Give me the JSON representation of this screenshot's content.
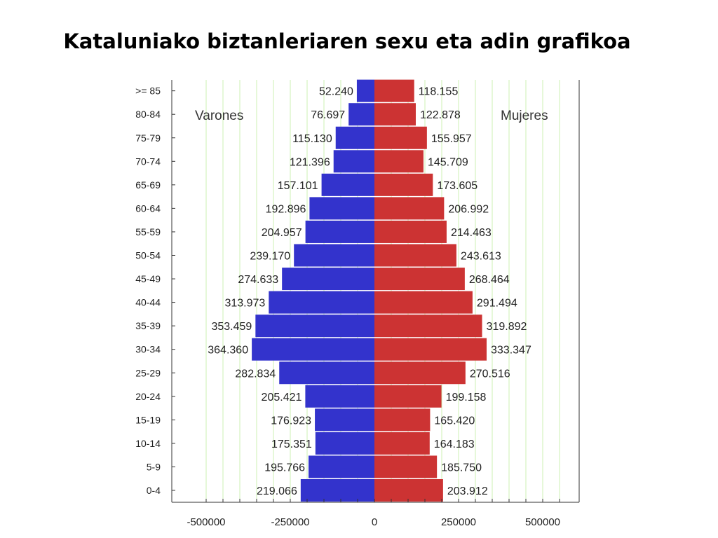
{
  "slide": {
    "title": "Kataluniako biztanleriaren sexu eta adin grafikoa"
  },
  "colors": {
    "male": "#3333cc",
    "female": "#cc3333",
    "grid": "#ccf0b3",
    "axis": "#333333"
  },
  "chart_data": {
    "type": "bar",
    "orientation": "horizontal",
    "subtype": "population-pyramid",
    "categories": [
      "0-4",
      "5-9",
      "10-14",
      "15-19",
      "20-24",
      "25-29",
      "30-34",
      "35-39",
      "40-44",
      "45-49",
      "50-54",
      "55-59",
      "60-64",
      "65-69",
      "70-74",
      "75-79",
      "80-84",
      ">= 85"
    ],
    "series": [
      {
        "name": "Varones",
        "side": "left",
        "values": [
          219066,
          195766,
          175351,
          176923,
          205421,
          282834,
          364360,
          353459,
          313973,
          274633,
          239170,
          204957,
          192896,
          157101,
          121396,
          115130,
          76697,
          52240
        ],
        "labels": [
          "219.066",
          "195.766",
          "175.351",
          "176.923",
          "205.421",
          "282.834",
          "364.360",
          "353.459",
          "313.973",
          "274.633",
          "239.170",
          "204.957",
          "192.896",
          "157.101",
          "121.396",
          "115.130",
          "76.697",
          "52.240"
        ]
      },
      {
        "name": "Mujeres",
        "side": "right",
        "values": [
          203912,
          185750,
          164183,
          165420,
          199158,
          270516,
          333347,
          319892,
          291494,
          268464,
          243613,
          214463,
          206992,
          173605,
          145709,
          155957,
          122878,
          118155
        ],
        "labels": [
          "203.912",
          "185.750",
          "164.183",
          "165.420",
          "199.158",
          "270.516",
          "333.347",
          "319.892",
          "291.494",
          "268.464",
          "243.613",
          "214.463",
          "206.992",
          "173.605",
          "145.709",
          "155.957",
          "122.878",
          "118.155"
        ]
      }
    ],
    "xlim": [
      -560000,
      600000
    ],
    "xticks": [
      -500000,
      -250000,
      0,
      250000,
      500000
    ],
    "xtick_labels": [
      "-500000",
      "-250000",
      "0",
      "250000",
      "500000"
    ],
    "legend": [
      "Varones",
      "Mujeres"
    ],
    "legend_placement": "top",
    "grid": true
  }
}
